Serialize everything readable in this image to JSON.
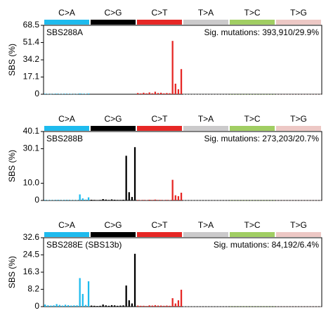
{
  "chart_data": [
    {
      "type": "bar",
      "title": "SBS288A",
      "annotation": "Sig. mutations: 393,910/29.9%",
      "ylabel": "SBS (%)",
      "groups": [
        {
          "name": "C>A",
          "color": "#1ebbee"
        },
        {
          "name": "C>G",
          "color": "#000000"
        },
        {
          "name": "C>T",
          "color": "#e62725"
        },
        {
          "name": "T>A",
          "color": "#cbcacb"
        },
        {
          "name": "T>C",
          "color": "#a1ce63"
        },
        {
          "name": "T>G",
          "color": "#edc8c5"
        }
      ],
      "values": [
        0.5,
        0.3,
        0.2,
        0.4,
        0.6,
        0.4,
        0.3,
        0.5,
        0.4,
        0.3,
        0.2,
        0.3,
        0.8,
        0.5,
        0.4,
        0.7,
        0.1,
        0.1,
        0.1,
        0.1,
        0.1,
        0.1,
        0.1,
        0.1,
        0.1,
        0.1,
        0.1,
        0.1,
        0.2,
        0.1,
        0.1,
        0.2,
        1.2,
        0.8,
        1.5,
        0.9,
        1.8,
        1.0,
        2.5,
        1.2,
        1.5,
        0.9,
        1.2,
        1.0,
        53.0,
        10.5,
        5.0,
        25.0,
        0.1,
        0.1,
        0.1,
        0.1,
        0.1,
        0.1,
        0.1,
        0.1,
        0.1,
        0.1,
        0.1,
        0.1,
        0.1,
        0.1,
        0.1,
        0.1,
        0.1,
        0.1,
        0.1,
        0.1,
        0.1,
        0.1,
        0.1,
        0.1,
        0.1,
        0.1,
        0.1,
        0.1,
        0.1,
        0.1,
        0.1,
        0.1,
        0.1,
        0.1,
        0.1,
        0.1,
        0.1,
        0.1,
        0.1,
        0.1,
        0.1,
        0.1,
        0.1,
        0.1,
        0.1,
        0.1,
        0.1,
        0.1
      ],
      "ylim": [
        0,
        68.5
      ],
      "yticks": [
        0,
        17.1,
        34.2,
        51.4,
        68.5
      ]
    },
    {
      "type": "bar",
      "title": "SBS288B",
      "annotation": "Sig. mutations: 273,203/20.7%",
      "ylabel": "SBS (%)",
      "groups": [
        {
          "name": "C>A",
          "color": "#1ebbee"
        },
        {
          "name": "C>G",
          "color": "#000000"
        },
        {
          "name": "C>T",
          "color": "#e62725"
        },
        {
          "name": "T>A",
          "color": "#cbcacb"
        },
        {
          "name": "T>C",
          "color": "#a1ce63"
        },
        {
          "name": "T>G",
          "color": "#edc8c5"
        }
      ],
      "values": [
        0.3,
        0.2,
        0.2,
        0.2,
        0.3,
        0.3,
        0.2,
        0.3,
        0.3,
        0.2,
        0.2,
        0.2,
        3.5,
        1.2,
        0.5,
        1.8,
        0.4,
        0.3,
        0.2,
        0.3,
        0.8,
        0.5,
        0.3,
        0.6,
        0.4,
        0.3,
        0.3,
        0.4,
        26.0,
        4.8,
        2.0,
        31.0,
        0.3,
        0.2,
        0.3,
        0.2,
        0.4,
        0.3,
        0.5,
        0.3,
        0.3,
        0.2,
        0.3,
        0.2,
        12.0,
        3.0,
        2.5,
        4.5,
        0.1,
        0.1,
        0.1,
        0.1,
        0.1,
        0.1,
        0.1,
        0.1,
        0.1,
        0.1,
        0.1,
        0.1,
        0.1,
        0.1,
        0.1,
        0.1,
        0.1,
        0.1,
        0.1,
        0.1,
        0.1,
        0.1,
        0.1,
        0.1,
        0.1,
        0.1,
        0.1,
        0.1,
        0.1,
        0.1,
        0.1,
        0.1,
        0.1,
        0.1,
        0.1,
        0.1,
        0.1,
        0.1,
        0.1,
        0.1,
        0.1,
        0.1,
        0.1,
        0.1,
        0.1,
        0.1,
        0.1,
        0.1
      ],
      "ylim": [
        0,
        40.1
      ],
      "yticks": [
        0,
        {
          "value": 10,
          "label": "10.0"
        },
        30.1,
        40.1
      ]
    },
    {
      "type": "bar",
      "title": "SBS288E (SBS13b)",
      "annotation": "Sig. mutations: 84,192/6.4%",
      "ylabel": "SBS (%)",
      "groups": [
        {
          "name": "C>A",
          "color": "#1ebbee"
        },
        {
          "name": "C>G",
          "color": "#000000"
        },
        {
          "name": "C>T",
          "color": "#e62725"
        },
        {
          "name": "T>A",
          "color": "#cbcacb"
        },
        {
          "name": "T>C",
          "color": "#a1ce63"
        },
        {
          "name": "T>G",
          "color": "#edc8c5"
        }
      ],
      "values": [
        1.0,
        0.6,
        0.5,
        0.6,
        1.2,
        0.8,
        0.5,
        0.9,
        0.7,
        0.5,
        0.6,
        0.6,
        13.5,
        6.0,
        0.8,
        12.0,
        0.5,
        0.4,
        0.3,
        0.4,
        1.0,
        0.6,
        0.4,
        0.7,
        0.6,
        0.4,
        0.5,
        0.6,
        10.0,
        3.0,
        1.5,
        25.0,
        0.5,
        0.4,
        0.4,
        0.3,
        0.6,
        0.5,
        0.7,
        0.5,
        0.5,
        0.4,
        0.5,
        0.4,
        4.0,
        1.5,
        3.0,
        8.0,
        0.1,
        0.1,
        0.1,
        0.1,
        0.1,
        0.1,
        0.1,
        0.1,
        0.1,
        0.1,
        0.1,
        0.1,
        0.1,
        0.1,
        0.1,
        0.1,
        0.1,
        0.1,
        0.1,
        0.1,
        0.1,
        0.1,
        0.1,
        0.1,
        0.1,
        0.1,
        0.1,
        0.1,
        0.1,
        0.1,
        0.1,
        0.1,
        0.1,
        0.1,
        0.1,
        0.1,
        0.1,
        0.1,
        0.1,
        0.1,
        0.1,
        0.1,
        0.1,
        0.1,
        0.1,
        0.1,
        0.1,
        0.1
      ],
      "ylim": [
        0,
        32.6
      ],
      "yticks": [
        0,
        8.2,
        16.3,
        24.5,
        32.6
      ]
    }
  ]
}
